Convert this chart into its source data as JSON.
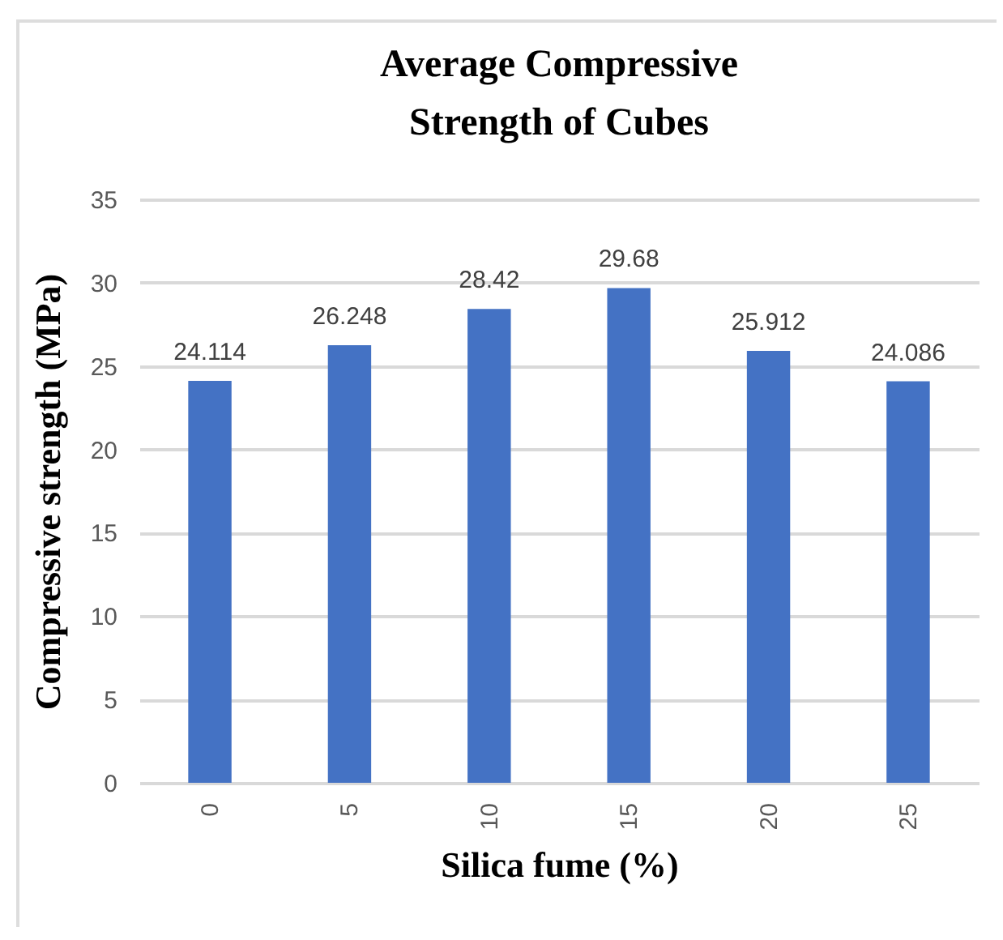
{
  "chart_data": {
    "type": "bar",
    "title": "Average Compressive Strength of Cubes",
    "xlabel": "Silica fume (%)",
    "ylabel": "Compressive strength (MPa)",
    "categories": [
      "0",
      "5",
      "10",
      "15",
      "20",
      "25"
    ],
    "values": [
      24.114,
      26.248,
      28.42,
      29.68,
      25.912,
      24.086
    ],
    "color": "#4472c4",
    "ylim": [
      0,
      35
    ],
    "yticks": [
      0,
      5,
      10,
      15,
      20,
      25,
      30,
      35
    ],
    "grid": "y",
    "data_labels": true
  }
}
